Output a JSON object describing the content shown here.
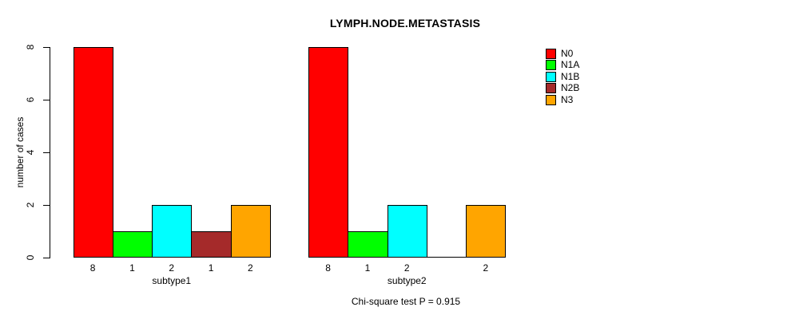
{
  "title": "LYMPH.NODE.METASTASIS",
  "ylabel": "number of cases",
  "footnote": "Chi-square test P = 0.915",
  "chart_data": {
    "type": "bar",
    "title": "LYMPH.NODE.METASTASIS",
    "ylabel": "number of cases",
    "ylim": [
      0,
      8
    ],
    "y_ticks": [
      0,
      2,
      4,
      6,
      8
    ],
    "grid": false,
    "legend_position": "right",
    "categories": [
      "N0",
      "N1A",
      "N1B",
      "N2B",
      "N3"
    ],
    "legend": [
      {
        "label": "N0",
        "color": "#ff0000"
      },
      {
        "label": "N1A",
        "color": "#00ff00"
      },
      {
        "label": "N1B",
        "color": "#00ffff"
      },
      {
        "label": "N2B",
        "color": "#a52a2a"
      },
      {
        "label": "N3",
        "color": "#ffa500"
      }
    ],
    "panels": [
      {
        "xlabel": "subtype1",
        "values": [
          8,
          1,
          2,
          1,
          2
        ],
        "bar_labels": [
          "8",
          "1",
          "2",
          "1",
          "2"
        ]
      },
      {
        "xlabel": "subtype2",
        "values": [
          8,
          1,
          2,
          0,
          2
        ],
        "bar_labels": [
          "8",
          "1",
          "2",
          "",
          "2"
        ]
      }
    ],
    "annotation": "Chi-square test P = 0.915"
  }
}
